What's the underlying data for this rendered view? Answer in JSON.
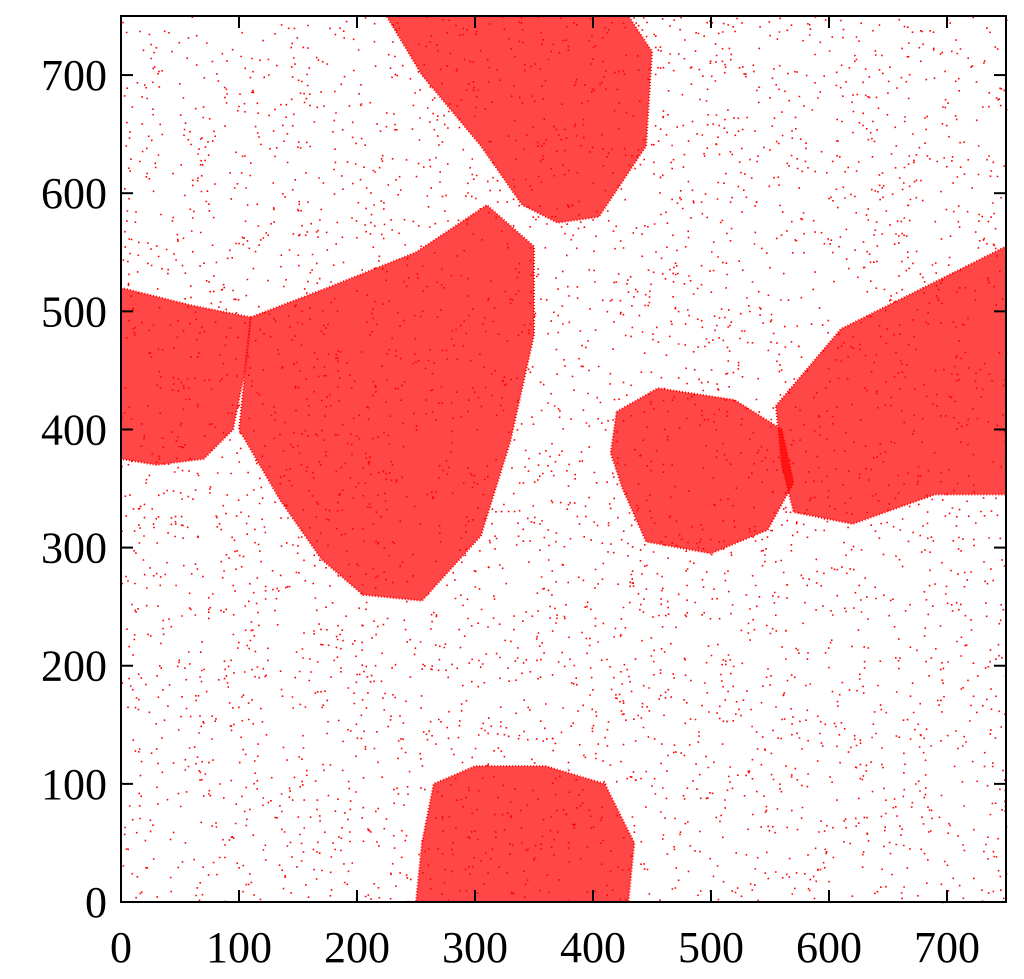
{
  "chart_data": {
    "type": "scatter",
    "title": "",
    "xlabel": "",
    "ylabel": "",
    "xlim": [
      0,
      750
    ],
    "ylim": [
      0,
      750
    ],
    "x_ticks": [
      0,
      100,
      200,
      300,
      400,
      500,
      600,
      700
    ],
    "y_ticks": [
      0,
      100,
      200,
      300,
      400,
      500,
      600,
      700
    ],
    "grid": false,
    "legend": "none",
    "marker": "point",
    "point_color": "#ff0000",
    "background_density": 0.06,
    "series": [
      {
        "name": "",
        "dense_regions": [
          {
            "polygon": [
              [
                0,
                520
              ],
              [
                60,
                505
              ],
              [
                110,
                495
              ],
              [
                105,
                450
              ],
              [
                95,
                400
              ],
              [
                70,
                375
              ],
              [
                30,
                370
              ],
              [
                0,
                375
              ]
            ]
          },
          {
            "polygon": [
              [
                110,
                495
              ],
              [
                175,
                520
              ],
              [
                250,
                550
              ],
              [
                310,
                590
              ],
              [
                350,
                555
              ],
              [
                350,
                480
              ],
              [
                330,
                390
              ],
              [
                305,
                310
              ],
              [
                255,
                255
              ],
              [
                205,
                260
              ],
              [
                170,
                290
              ],
              [
                135,
                340
              ],
              [
                100,
                400
              ]
            ]
          },
          {
            "polygon": [
              [
                225,
                750
              ],
              [
                430,
                750
              ],
              [
                450,
                720
              ],
              [
                445,
                640
              ],
              [
                405,
                580
              ],
              [
                370,
                575
              ],
              [
                340,
                590
              ],
              [
                305,
                640
              ],
              [
                255,
                700
              ]
            ]
          },
          {
            "polygon": [
              [
                420,
                415
              ],
              [
                455,
                435
              ],
              [
                520,
                425
              ],
              [
                560,
                400
              ],
              [
                570,
                355
              ],
              [
                548,
                315
              ],
              [
                500,
                295
              ],
              [
                445,
                305
              ],
              [
                425,
                350
              ],
              [
                415,
                380
              ]
            ]
          },
          {
            "polygon": [
              [
                555,
                420
              ],
              [
                610,
                485
              ],
              [
                680,
                520
              ],
              [
                750,
                555
              ],
              [
                750,
                345
              ],
              [
                690,
                345
              ],
              [
                620,
                320
              ],
              [
                570,
                330
              ],
              [
                560,
                370
              ]
            ]
          },
          {
            "polygon": [
              [
                250,
                0
              ],
              [
                430,
                0
              ],
              [
                435,
                50
              ],
              [
                410,
                100
              ],
              [
                360,
                115
              ],
              [
                300,
                115
              ],
              [
                265,
                100
              ],
              [
                255,
                50
              ]
            ]
          }
        ]
      }
    ]
  }
}
